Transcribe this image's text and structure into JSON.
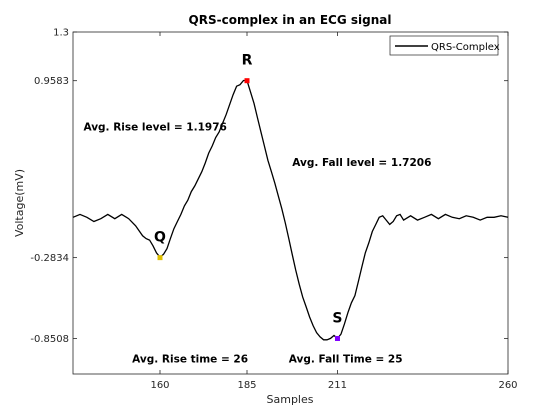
{
  "chart_data": {
    "type": "line",
    "title": "QRS-complex in an ECG signal",
    "xlabel": "Samples",
    "ylabel": "Voltage(mV)",
    "xlim": [
      135,
      260
    ],
    "ylim": [
      -1.1,
      1.3
    ],
    "xticks": [
      160,
      185,
      211,
      260
    ],
    "yticks": [
      -0.8508,
      -0.2834,
      0.9583,
      1.3
    ],
    "ytick_labels": [
      "-0.8508",
      "-0.2834",
      "0.9583",
      "1.3"
    ],
    "grid": false,
    "legend": {
      "position": "top-right",
      "entries": [
        "QRS-Complex"
      ]
    },
    "series": [
      {
        "name": "QRS-Complex",
        "color": "#000000",
        "x": [
          135,
          137,
          139,
          141,
          143,
          145,
          147,
          149,
          151,
          153,
          155,
          156,
          157,
          158,
          159,
          160,
          161,
          162,
          163,
          164,
          165,
          166,
          167,
          168,
          169,
          170,
          171,
          172,
          173,
          174,
          175,
          176,
          177,
          178,
          179,
          180,
          181,
          182,
          183,
          184,
          185,
          186,
          187,
          188,
          189,
          190,
          191,
          192,
          193,
          194,
          195,
          196,
          197,
          198,
          199,
          200,
          201,
          202,
          203,
          204,
          205,
          206,
          207,
          208,
          209,
          210,
          211,
          212,
          213,
          214,
          215,
          216,
          217,
          218,
          219,
          220,
          221,
          222,
          223,
          224,
          225,
          226,
          227,
          228,
          229,
          230,
          232,
          234,
          236,
          238,
          240,
          242,
          244,
          246,
          248,
          250,
          252,
          254,
          256,
          258,
          260
        ],
        "y": [
          0.0,
          0.02,
          0.0,
          -0.03,
          -0.01,
          0.02,
          -0.01,
          0.02,
          -0.01,
          -0.06,
          -0.13,
          -0.15,
          -0.16,
          -0.2,
          -0.25,
          -0.28,
          -0.26,
          -0.22,
          -0.15,
          -0.08,
          -0.03,
          0.02,
          0.08,
          0.12,
          0.18,
          0.22,
          0.27,
          0.32,
          0.38,
          0.45,
          0.5,
          0.56,
          0.6,
          0.66,
          0.72,
          0.79,
          0.86,
          0.92,
          0.93,
          0.96,
          0.96,
          0.88,
          0.8,
          0.7,
          0.6,
          0.5,
          0.4,
          0.32,
          0.24,
          0.15,
          0.06,
          -0.04,
          -0.15,
          -0.26,
          -0.37,
          -0.47,
          -0.56,
          -0.63,
          -0.7,
          -0.76,
          -0.81,
          -0.84,
          -0.86,
          -0.86,
          -0.85,
          -0.83,
          -0.85,
          -0.82,
          -0.75,
          -0.67,
          -0.6,
          -0.55,
          -0.45,
          -0.35,
          -0.25,
          -0.18,
          -0.1,
          -0.05,
          0.0,
          0.01,
          -0.02,
          -0.05,
          -0.03,
          0.01,
          0.02,
          -0.02,
          0.01,
          -0.02,
          0.0,
          0.02,
          -0.01,
          0.02,
          0.0,
          -0.01,
          0.01,
          0.0,
          -0.02,
          0.0,
          0.0,
          0.01,
          0.0
        ]
      }
    ],
    "markers": [
      {
        "label": "Q",
        "x": 160,
        "y": -0.2834,
        "color": "#e0c000"
      },
      {
        "label": "R",
        "x": 185,
        "y": 0.9583,
        "color": "#ff0000"
      },
      {
        "label": "S",
        "x": 211,
        "y": -0.8508,
        "color": "#8000ff"
      }
    ],
    "annotations": [
      {
        "text": "Avg. Rise level = 1.1976",
        "x": 138,
        "y": 0.61
      },
      {
        "text": "Avg. Fall level = 1.7206",
        "x": 198,
        "y": 0.36
      },
      {
        "text": "Avg. Rise time = 26",
        "x": 152,
        "y": -1.02
      },
      {
        "text": "Avg. Fall Time = 25",
        "x": 197,
        "y": -1.02
      }
    ]
  }
}
